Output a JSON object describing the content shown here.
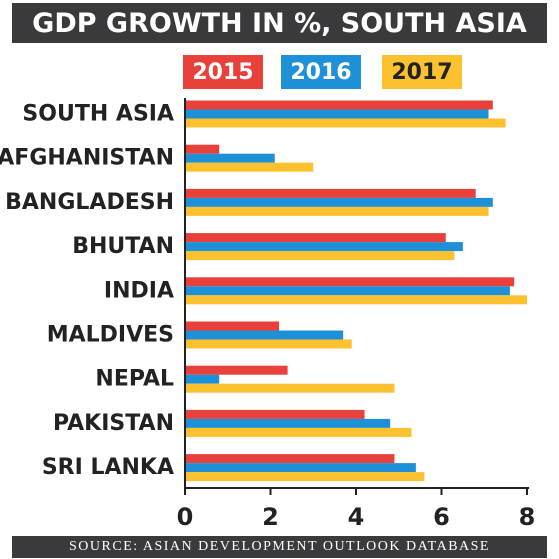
{
  "title": "GDP GROWTH IN %, SOUTH ASIA",
  "source": "SOURCE: ASIAN DEVELOPMENT OUTLOOK DATABASE",
  "colors": {
    "2015": "#e8403a",
    "2016": "#1e90d8",
    "2017": "#fcc12f",
    "title_bg": "#3a3a3c"
  },
  "chart_data": {
    "type": "bar",
    "orientation": "horizontal",
    "title": "GDP GROWTH IN %, SOUTH ASIA",
    "categories": [
      "SOUTH ASIA",
      "AFGHANISTAN",
      "BANGLADESH",
      "BHUTAN",
      "INDIA",
      "MALDIVES",
      "NEPAL",
      "PAKISTAN",
      "SRI LANKA"
    ],
    "series": [
      {
        "name": "2015",
        "values": [
          7.2,
          0.8,
          6.8,
          6.1,
          7.7,
          2.2,
          2.4,
          4.2,
          4.9
        ]
      },
      {
        "name": "2016",
        "values": [
          7.1,
          2.1,
          7.2,
          6.5,
          7.6,
          3.7,
          0.8,
          4.8,
          5.4
        ]
      },
      {
        "name": "2017",
        "values": [
          7.5,
          3.0,
          7.1,
          6.3,
          8.0,
          3.9,
          4.9,
          5.3,
          5.6
        ]
      }
    ],
    "xticks": [
      "0",
      "2",
      "4",
      "6",
      "8"
    ],
    "xlim": [
      0,
      8
    ],
    "legend_position": "top"
  }
}
